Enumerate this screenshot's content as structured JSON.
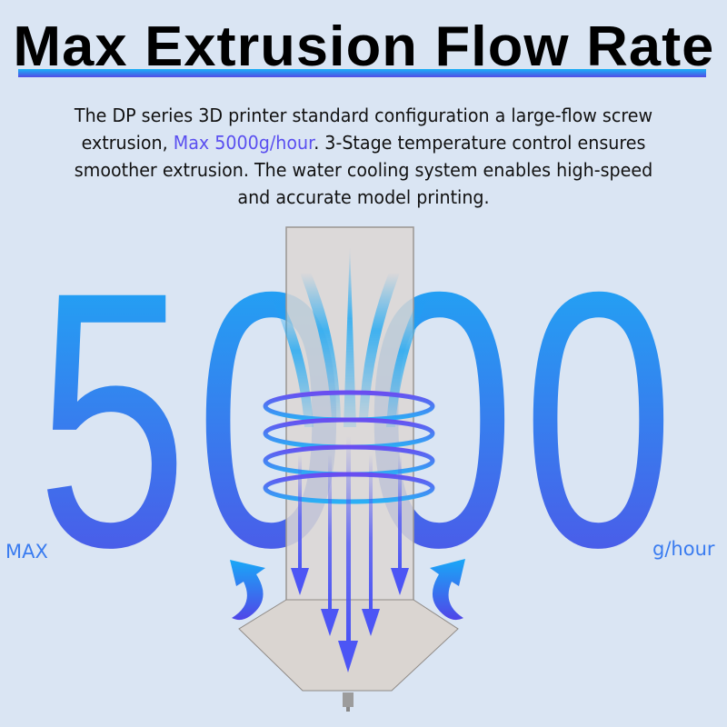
{
  "title": "Max Extrusion Flow Rate",
  "description": {
    "part1": "The DP series 3D printer standard configuration a large-flow screw extrusion, ",
    "highlight": "Max 5000g/hour",
    "part2": ". 3-Stage temperature control ensures smoother extrusion. The water cooling system enables high-speed and accurate model printing."
  },
  "big_number": {
    "d1": "5",
    "d2": "0",
    "d3": "0",
    "d4": "0"
  },
  "max_label": "MAX",
  "unit_label": "g/hour",
  "colors": {
    "background": "#dae5f3",
    "gradient_top": "#19b2f6",
    "gradient_bottom": "#544be6",
    "highlight": "#5a4ff0"
  }
}
